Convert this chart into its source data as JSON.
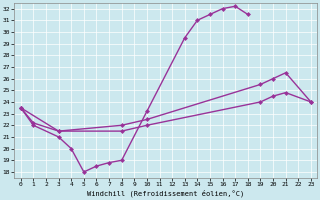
{
  "xlabel": "Windchill (Refroidissement éolien,°C)",
  "bg_color": "#cce8ee",
  "line_color": "#993399",
  "xlim": [
    -0.5,
    23.5
  ],
  "ylim": [
    17.5,
    32.5
  ],
  "xticks": [
    0,
    1,
    2,
    3,
    4,
    5,
    6,
    7,
    8,
    9,
    10,
    11,
    12,
    13,
    14,
    15,
    16,
    17,
    18,
    19,
    20,
    21,
    22,
    23
  ],
  "yticks": [
    18,
    19,
    20,
    21,
    22,
    23,
    24,
    25,
    26,
    27,
    28,
    29,
    30,
    31,
    32
  ],
  "line1_x": [
    0,
    1,
    3,
    4,
    5,
    6,
    7,
    8,
    10,
    13,
    14,
    15,
    16,
    17,
    18
  ],
  "line1_y": [
    23.5,
    22.0,
    21.0,
    20.0,
    18.0,
    18.5,
    18.8,
    19.0,
    23.2,
    29.5,
    31.0,
    31.5,
    32.0,
    32.2,
    31.5
  ],
  "line2_x": [
    0,
    1,
    3,
    8,
    10,
    19,
    20,
    21,
    23
  ],
  "line2_y": [
    23.5,
    22.2,
    21.5,
    22.0,
    22.5,
    25.5,
    26.0,
    26.5,
    24.0
  ],
  "line3_x": [
    0,
    3,
    8,
    10,
    19,
    20,
    21,
    23
  ],
  "line3_y": [
    23.5,
    21.5,
    21.5,
    22.0,
    24.0,
    24.5,
    24.8,
    24.0
  ],
  "markersize": 2.5,
  "linewidth": 1.0
}
